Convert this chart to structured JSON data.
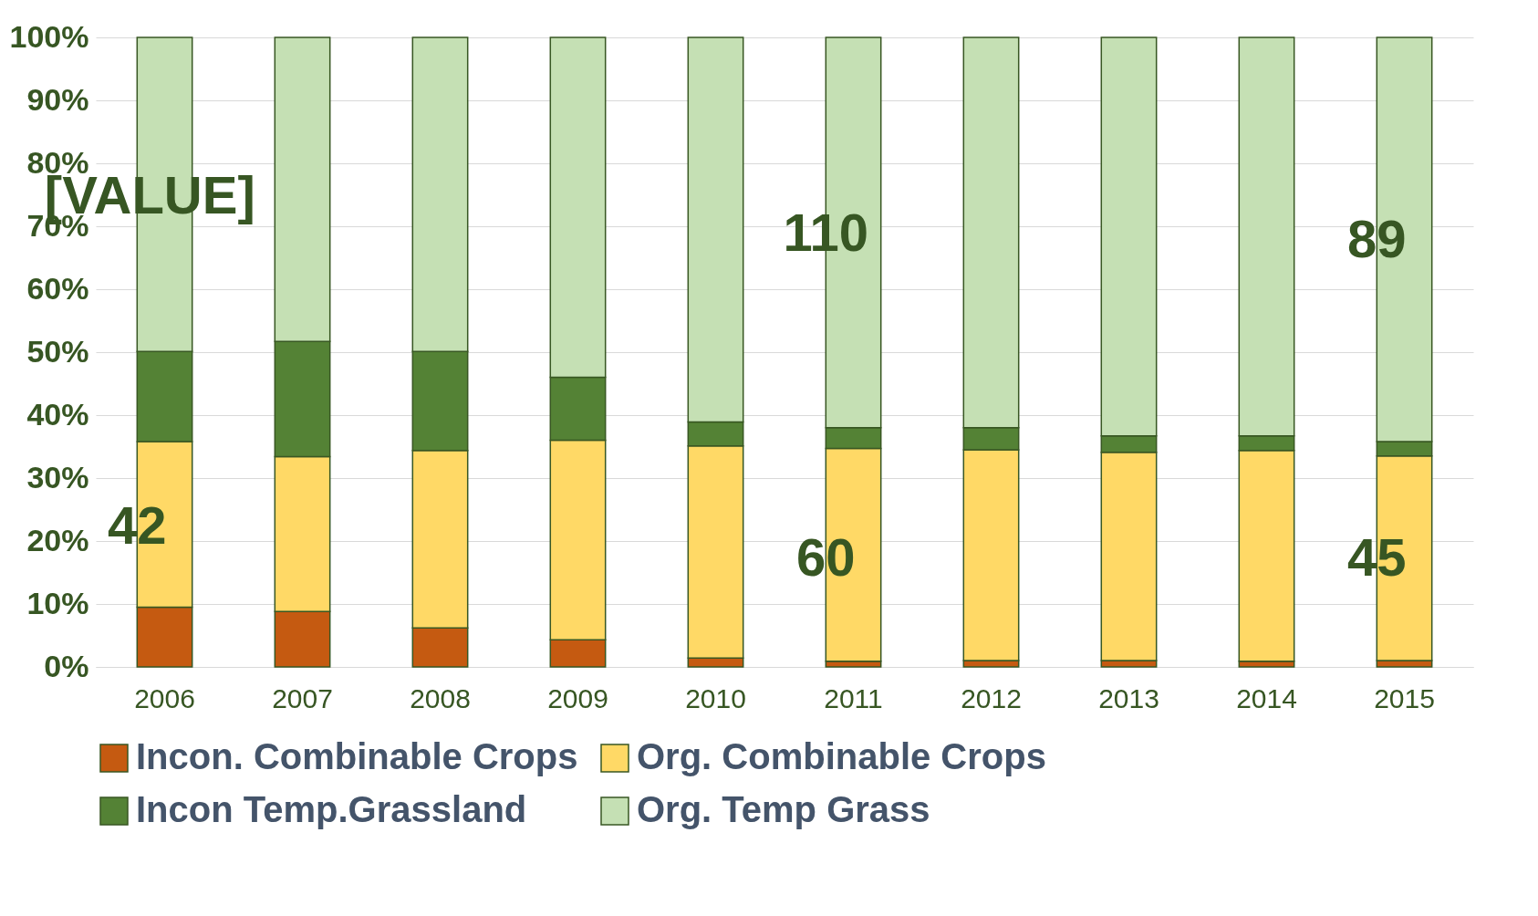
{
  "chart_data": {
    "type": "bar",
    "stacked": true,
    "categories": [
      "2006",
      "2007",
      "2008",
      "2009",
      "2010",
      "2011",
      "2012",
      "2013",
      "2014",
      "2015"
    ],
    "series": [
      {
        "name": "Incon. Combinable Crops",
        "color": "#c55a11",
        "values": [
          9.5,
          8.8,
          6.2,
          4.3,
          1.4,
          0.9,
          1.0,
          1.0,
          0.9,
          1.0
        ]
      },
      {
        "name": "Org. Combinable Crops",
        "color": "#ffd966",
        "values": [
          26.3,
          24.6,
          28.2,
          31.7,
          33.7,
          33.8,
          33.5,
          33.1,
          33.5,
          32.5
        ]
      },
      {
        "name": "Incon Temp.Grassland",
        "color": "#548235",
        "values": [
          14.3,
          18.3,
          15.7,
          10.0,
          3.8,
          3.3,
          3.5,
          2.6,
          2.3,
          2.3
        ]
      },
      {
        "name": "Org. Temp Grass",
        "color": "#c5e0b4",
        "values": [
          49.9,
          48.3,
          49.9,
          54.0,
          61.1,
          62.0,
          62.0,
          63.3,
          63.3,
          64.2
        ]
      }
    ],
    "ylim": [
      0,
      100
    ],
    "yticks": [
      {
        "value": 0,
        "label": "0%"
      },
      {
        "value": 10,
        "label": "10%"
      },
      {
        "value": 20,
        "label": "20%"
      },
      {
        "value": 30,
        "label": "30%"
      },
      {
        "value": 40,
        "label": "40%"
      },
      {
        "value": 50,
        "label": "50%"
      },
      {
        "value": 60,
        "label": "60%"
      },
      {
        "value": 70,
        "label": "70%"
      },
      {
        "value": 80,
        "label": "80%"
      },
      {
        "value": 90,
        "label": "90%"
      },
      {
        "value": 100,
        "label": "100%"
      }
    ],
    "grid": "y",
    "legend": "bottom",
    "annotations": [
      "[VALUE]",
      "42",
      "110",
      "60",
      "89",
      "45"
    ]
  }
}
